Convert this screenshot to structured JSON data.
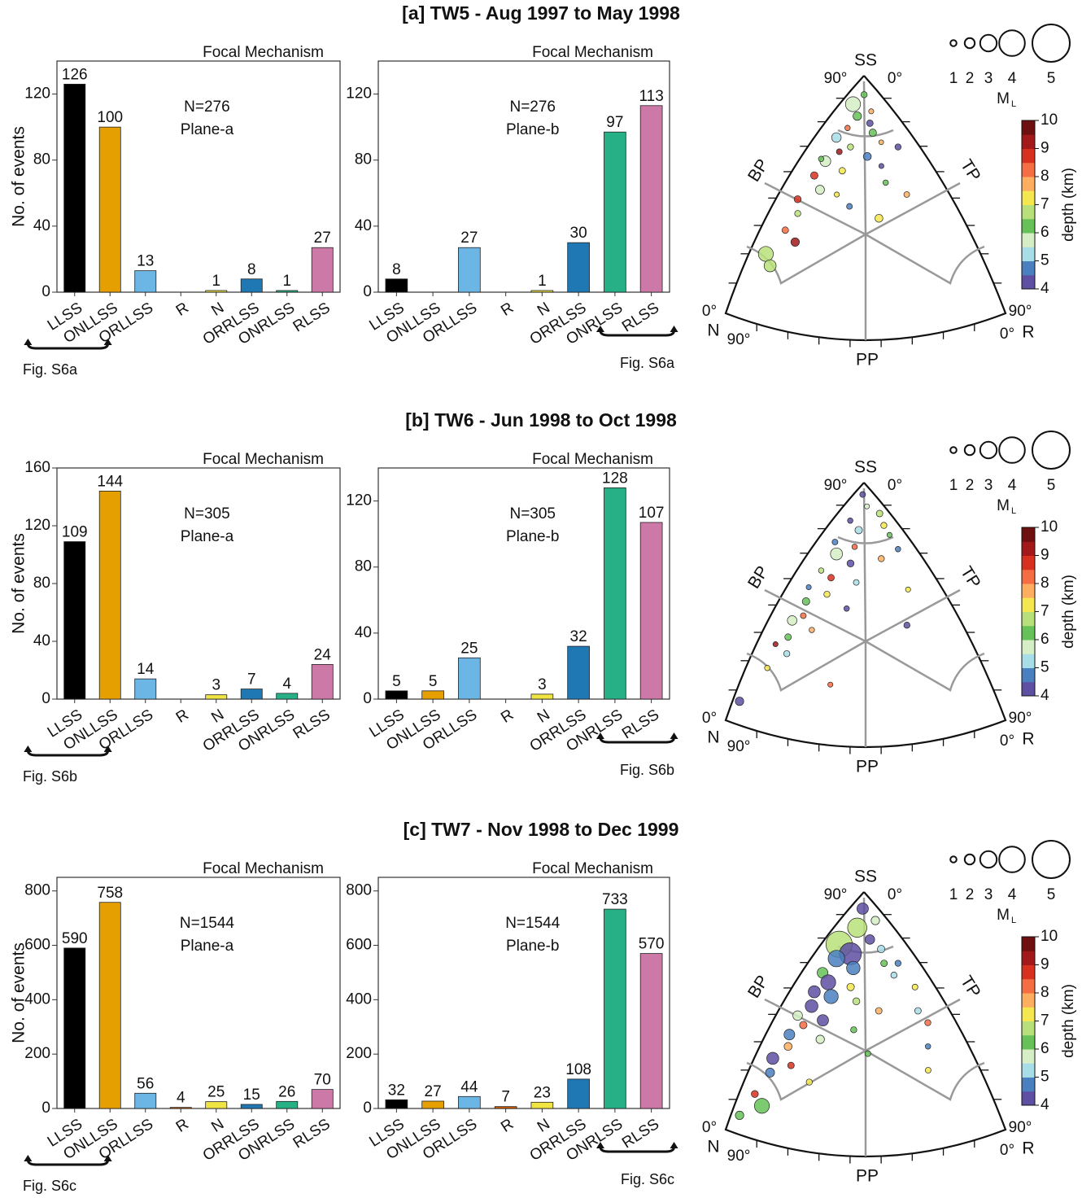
{
  "chart_data": [
    {
      "type": "bar",
      "title": "[a] TW5 - Aug 1997 to May 1998",
      "header": "Focal Mechanism",
      "ylabel": "No. of events",
      "annotations": [
        "N=276",
        "Plane-a"
      ],
      "footnote": "Fig. S6a",
      "categories": [
        "LLSS",
        "ONLLSS",
        "ORLLSS",
        "R",
        "N",
        "ORRLSS",
        "ONRLSS",
        "RLSS"
      ],
      "values": [
        126,
        100,
        13,
        null,
        1,
        8,
        1,
        27
      ],
      "colors": [
        "#000000",
        "#e69f00",
        "#6cb6e6",
        "#d55e00",
        "#f0e442",
        "#1f78b4",
        "#27b085",
        "#cc79a7"
      ],
      "ylim": [
        0,
        140
      ],
      "yticks": [
        0,
        40,
        80,
        120
      ]
    },
    {
      "type": "bar",
      "header": "Focal Mechanism",
      "annotations": [
        "N=276",
        "Plane-b"
      ],
      "footnote": "Fig. S6a",
      "categories": [
        "LLSS",
        "ONLLSS",
        "ORLLSS",
        "R",
        "N",
        "ORRLSS",
        "ONRLSS",
        "RLSS"
      ],
      "values": [
        8,
        null,
        27,
        null,
        1,
        30,
        97,
        113
      ],
      "colors": [
        "#000000",
        "#e69f00",
        "#6cb6e6",
        "#d55e00",
        "#f0e442",
        "#1f78b4",
        "#27b085",
        "#cc79a7"
      ],
      "ylim": [
        0,
        140
      ],
      "yticks": [
        0,
        40,
        80,
        120
      ]
    },
    {
      "type": "ternary",
      "labels": {
        "ss": "SS",
        "bp": "BP",
        "tp": "TP",
        "pp": "PP",
        "n": "N",
        "r": "R"
      },
      "angle_min": "0°",
      "angle_max": "90°",
      "size_legend": {
        "label": "M",
        "label_sub": "L",
        "values": [
          1,
          2,
          3,
          4,
          5
        ]
      },
      "colorbar": {
        "label": "depth (km)",
        "lim": [
          4,
          10
        ],
        "ticks": [
          4,
          5,
          6,
          7,
          8,
          9,
          10
        ],
        "colors": [
          "#5e4fa2",
          "#4a7fc0",
          "#a6dde6",
          "#d5eec6",
          "#66c258",
          "#b8e07a",
          "#f5e74f",
          "#fdae61",
          "#f46d43",
          "#d7301f",
          "#a3191a",
          "#6e1010"
        ]
      },
      "ss": [
        0.92,
        0.88,
        0.85,
        0.83,
        0.8,
        0.78,
        0.76,
        0.74,
        0.72,
        0.7,
        0.68,
        0.66,
        0.64,
        0.62,
        0.6,
        0.58,
        0.55,
        0.52,
        0.5,
        0.48,
        0.45,
        0.42,
        0.4,
        0.35,
        0.3,
        0.25,
        0.2,
        0.7,
        0.65,
        0.5
      ],
      "r": [
        0.04,
        0.02,
        0.1,
        0.06,
        0.12,
        0.05,
        0.15,
        0.03,
        0.2,
        0.1,
        0.07,
        0.18,
        0.04,
        0.25,
        0.12,
        0.03,
        0.3,
        0.08,
        0.15,
        0.02,
        0.22,
        0.05,
        0.35,
        0.04,
        0.1,
        0.02,
        0.06,
        0.27,
        0.02,
        0.4
      ],
      "depth": [
        6.2,
        5.8,
        7.5,
        6.4,
        4.3,
        8.2,
        6.1,
        5.2,
        7.8,
        6.6,
        9.1,
        4.8,
        5.9,
        4.2,
        7.1,
        8.6,
        6.3,
        5.5,
        7.4,
        8.8,
        4.6,
        6.9,
        7.2,
        8.1,
        9.3,
        6.8,
        6.5,
        4.4,
        6.0,
        7.7
      ],
      "ml": [
        1.5,
        3.0,
        1.2,
        2.0,
        1.6,
        1.3,
        1.8,
        2.2,
        1.1,
        1.5,
        1.4,
        1.9,
        2.4,
        1.2,
        1.6,
        1.8,
        1.3,
        2.1,
        1.2,
        1.7,
        1.4,
        1.5,
        1.9,
        1.6,
        2.0,
        3.0,
        2.6,
        1.5,
        1.3,
        1.4
      ]
    },
    {
      "type": "bar",
      "title": "[b] TW6 - Jun 1998 to Oct 1998",
      "header": "Focal Mechanism",
      "ylabel": "No. of events",
      "annotations": [
        "N=305",
        "Plane-a"
      ],
      "footnote": "Fig. S6b",
      "categories": [
        "LLSS",
        "ONLLSS",
        "ORLLSS",
        "R",
        "N",
        "ORRLSS",
        "ONRLSS",
        "RLSS"
      ],
      "values": [
        109,
        144,
        14,
        null,
        3,
        7,
        4,
        24
      ],
      "colors": [
        "#000000",
        "#e69f00",
        "#6cb6e6",
        "#d55e00",
        "#f0e442",
        "#1f78b4",
        "#27b085",
        "#cc79a7"
      ],
      "ylim": [
        0,
        160
      ],
      "yticks": [
        0,
        40,
        80,
        120,
        160
      ]
    },
    {
      "type": "bar",
      "header": "Focal Mechanism",
      "annotations": [
        "N=305",
        "Plane-b"
      ],
      "footnote": "Fig. S6b",
      "categories": [
        "LLSS",
        "ONLLSS",
        "ORLLSS",
        "R",
        "N",
        "ORRLSS",
        "ONRLSS",
        "RLSS"
      ],
      "values": [
        5,
        5,
        25,
        null,
        3,
        32,
        128,
        107
      ],
      "colors": [
        "#000000",
        "#e69f00",
        "#6cb6e6",
        "#d55e00",
        "#f0e442",
        "#1f78b4",
        "#27b085",
        "#cc79a7"
      ],
      "ylim": [
        0,
        140
      ],
      "yticks": [
        0,
        40,
        80,
        120
      ]
    },
    {
      "type": "ternary",
      "labels": {
        "ss": "SS",
        "bp": "BP",
        "tp": "TP",
        "pp": "PP",
        "n": "N",
        "r": "R"
      },
      "angle_min": "0°",
      "angle_max": "90°",
      "size_legend": {
        "label": "M",
        "label_sub": "L",
        "values": [
          1,
          2,
          3,
          4,
          5
        ]
      },
      "colorbar": {
        "label": "depth (km)",
        "lim": [
          4,
          10
        ],
        "ticks": [
          4,
          5,
          6,
          7,
          8,
          9,
          10
        ],
        "colors": [
          "#5e4fa2",
          "#4a7fc0",
          "#a6dde6",
          "#d5eec6",
          "#66c258",
          "#b8e07a",
          "#f5e74f",
          "#fdae61",
          "#f46d43",
          "#d7301f",
          "#a3191a",
          "#6e1010"
        ]
      },
      "ss": [
        0.95,
        0.9,
        0.87,
        0.84,
        0.82,
        0.8,
        0.78,
        0.75,
        0.73,
        0.7,
        0.68,
        0.66,
        0.63,
        0.6,
        0.58,
        0.56,
        0.53,
        0.5,
        0.47,
        0.44,
        0.42,
        0.38,
        0.35,
        0.32,
        0.28,
        0.22,
        0.15,
        0.08,
        0.72,
        0.55,
        0.4
      ],
      "r": [
        0.02,
        0.06,
        0.12,
        0.03,
        0.16,
        0.08,
        0.2,
        0.02,
        0.1,
        0.05,
        0.22,
        0.12,
        0.03,
        0.08,
        0.18,
        0.02,
        0.1,
        0.04,
        0.2,
        0.06,
        0.03,
        0.12,
        0.05,
        0.02,
        0.08,
        0.04,
        0.3,
        0.01,
        0.26,
        0.38,
        0.45
      ],
      "depth": [
        4.2,
        5.5,
        6.8,
        4.4,
        7.3,
        5.1,
        6.2,
        4.6,
        8.4,
        5.9,
        7.6,
        4.3,
        6.5,
        8.9,
        5.3,
        4.7,
        7.2,
        6.4,
        4.2,
        8.1,
        5.6,
        7.9,
        6.1,
        9.2,
        5.0,
        7.4,
        8.3,
        4.3,
        4.5,
        7.0,
        4.4
      ],
      "ml": [
        1.4,
        1.2,
        1.6,
        1.3,
        1.5,
        1.8,
        1.2,
        1.4,
        1.3,
        2.6,
        1.5,
        1.7,
        1.3,
        1.6,
        1.4,
        1.2,
        1.5,
        1.8,
        1.3,
        1.4,
        2.2,
        1.3,
        1.6,
        1.2,
        1.5,
        1.3,
        1.2,
        2.0,
        1.3,
        1.2,
        1.5
      ]
    },
    {
      "type": "bar",
      "title": "[c] TW7 - Nov 1998 to Dec 1999",
      "header": "Focal Mechanism",
      "ylabel": "No. of events",
      "annotations": [
        "N=1544",
        "Plane-a"
      ],
      "footnote": "Fig. S6c",
      "categories": [
        "LLSS",
        "ONLLSS",
        "ORLLSS",
        "R",
        "N",
        "ORRLSS",
        "ONRLSS",
        "RLSS"
      ],
      "values": [
        590,
        758,
        56,
        4,
        25,
        15,
        26,
        70
      ],
      "colors": [
        "#000000",
        "#e69f00",
        "#6cb6e6",
        "#d55e00",
        "#f0e442",
        "#1f78b4",
        "#27b085",
        "#cc79a7"
      ],
      "ylim": [
        0,
        850
      ],
      "yticks": [
        0,
        200,
        400,
        600,
        800
      ]
    },
    {
      "type": "bar",
      "header": "Focal Mechanism",
      "annotations": [
        "N=1544",
        "Plane-b"
      ],
      "footnote": "Fig. S6c",
      "categories": [
        "LLSS",
        "ONLLSS",
        "ORLLSS",
        "R",
        "N",
        "ORRLSS",
        "ONRLSS",
        "RLSS"
      ],
      "values": [
        32,
        27,
        44,
        7,
        23,
        108,
        733,
        570
      ],
      "colors": [
        "#000000",
        "#e69f00",
        "#6cb6e6",
        "#d55e00",
        "#f0e442",
        "#1f78b4",
        "#27b085",
        "#cc79a7"
      ],
      "ylim": [
        0,
        850
      ],
      "yticks": [
        0,
        200,
        400,
        600,
        800
      ]
    },
    {
      "type": "ternary",
      "labels": {
        "ss": "SS",
        "bp": "BP",
        "tp": "TP",
        "pp": "PP",
        "n": "N",
        "r": "R"
      },
      "angle_min": "0°",
      "angle_max": "90°",
      "size_legend": {
        "label": "M",
        "label_sub": "L",
        "values": [
          1,
          2,
          3,
          4,
          5
        ]
      },
      "colorbar": {
        "label": "depth (km)",
        "lim": [
          4,
          10
        ],
        "ticks": [
          4,
          5,
          6,
          7,
          8,
          9,
          10
        ],
        "colors": [
          "#5e4fa2",
          "#4a7fc0",
          "#a6dde6",
          "#d5eec6",
          "#66c258",
          "#b8e07a",
          "#f5e74f",
          "#fdae61",
          "#f46d43",
          "#d7301f",
          "#a3191a",
          "#6e1010"
        ]
      },
      "ss": [
        0.93,
        0.88,
        0.85,
        0.8,
        0.78,
        0.76,
        0.74,
        0.72,
        0.7,
        0.68,
        0.66,
        0.65,
        0.62,
        0.6,
        0.58,
        0.56,
        0.54,
        0.52,
        0.5,
        0.48,
        0.46,
        0.44,
        0.42,
        0.4,
        0.38,
        0.35,
        0.32,
        0.3,
        0.27,
        0.24,
        0.2,
        0.15,
        0.1,
        0.06,
        0.7,
        0.6,
        0.5,
        0.45,
        0.35,
        0.25
      ],
      "r": [
        0.03,
        0.1,
        0.05,
        0.12,
        0.02,
        0.18,
        0.08,
        0.04,
        0.22,
        0.12,
        0.02,
        0.28,
        0.06,
        0.15,
        0.03,
        0.1,
        0.2,
        0.05,
        0.3,
        0.02,
        0.12,
        0.06,
        0.25,
        0.03,
        0.15,
        0.05,
        0.35,
        0.02,
        0.1,
        0.04,
        0.2,
        0.03,
        0.08,
        0.02,
        0.27,
        0.38,
        0.44,
        0.5,
        0.55,
        0.6
      ],
      "depth": [
        4.4,
        5.6,
        6.8,
        4.2,
        6.9,
        5.4,
        4.3,
        4.5,
        6.3,
        4.6,
        6.0,
        5.2,
        4.4,
        7.3,
        4.2,
        4.8,
        6.6,
        4.3,
        7.8,
        5.5,
        4.4,
        8.2,
        6.1,
        4.6,
        5.9,
        7.6,
        6.4,
        4.3,
        8.5,
        4.7,
        7.1,
        8.8,
        6.2,
        6.0,
        4.8,
        7.4,
        5.3,
        8.0,
        4.9,
        7.2
      ],
      "ml": [
        2.5,
        2.0,
        3.5,
        2.2,
        4.2,
        1.8,
        3.8,
        3.2,
        1.6,
        2.8,
        2.4,
        1.5,
        3.0,
        1.8,
        2.6,
        2.9,
        1.7,
        2.7,
        1.6,
        2.2,
        2.5,
        1.8,
        1.5,
        2.4,
        2.0,
        1.9,
        1.4,
        2.6,
        1.6,
        2.1,
        1.5,
        1.7,
        3.0,
        2.0,
        1.5,
        1.4,
        1.6,
        1.5,
        1.3,
        1.4
      ]
    }
  ]
}
